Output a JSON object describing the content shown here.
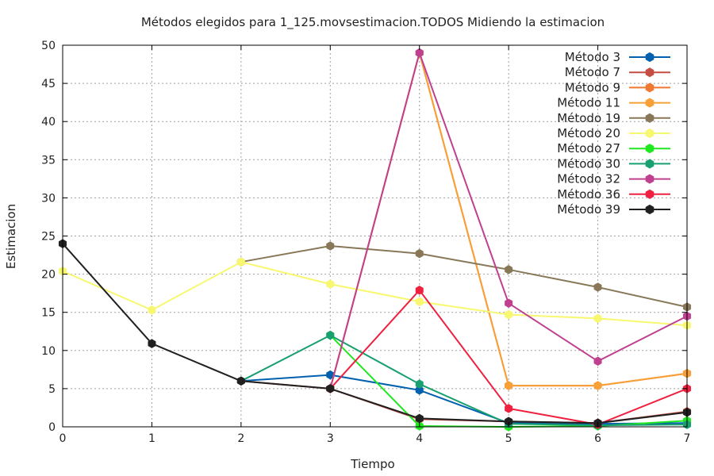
{
  "chart_data": {
    "type": "line",
    "title": "Métodos elegidos para 1_125.movsestimacion.TODOS Midiendo la estimacion",
    "xlabel": "Tiempo",
    "ylabel": "Estimacion",
    "xlim": [
      0,
      7
    ],
    "ylim": [
      0,
      50
    ],
    "xticks": [
      0,
      1,
      2,
      3,
      4,
      5,
      6,
      7
    ],
    "yticks": [
      0,
      5,
      10,
      15,
      20,
      25,
      30,
      35,
      40,
      45,
      50
    ],
    "grid": true,
    "legend_position": "top-right",
    "series": [
      {
        "name": "Método 3",
        "color": "#0060ad",
        "x": [
          2,
          3,
          4,
          5,
          6,
          7
        ],
        "values": [
          6.0,
          6.8,
          4.8,
          0.5,
          0.4,
          0.5
        ]
      },
      {
        "name": "Método 7",
        "color": "#c44e44",
        "x": [
          2,
          3,
          4,
          5,
          6,
          7
        ],
        "values": [
          6.0,
          5.0,
          1.0,
          0.7,
          0.5,
          2.0
        ]
      },
      {
        "name": "Método 9",
        "color": "#f07832",
        "x": [
          3,
          4,
          5,
          6,
          7
        ],
        "values": [
          5.0,
          49.0,
          5.4,
          5.4,
          7.0
        ]
      },
      {
        "name": "Método 11",
        "color": "#f8a038",
        "x": [
          3,
          4,
          5,
          6,
          7
        ],
        "values": [
          5.0,
          49.0,
          5.4,
          5.4,
          7.0
        ]
      },
      {
        "name": "Método 19",
        "color": "#887858",
        "x": [
          2,
          3,
          4,
          5,
          6,
          7
        ],
        "values": [
          21.6,
          23.7,
          22.7,
          20.6,
          18.3,
          15.7
        ]
      },
      {
        "name": "Método 20",
        "color": "#f8f870",
        "x": [
          0,
          1,
          2,
          3,
          4,
          5,
          6,
          7
        ],
        "values": [
          20.4,
          15.3,
          21.6,
          18.7,
          16.4,
          14.7,
          14.2,
          13.3
        ]
      },
      {
        "name": "Método 27",
        "color": "#20e820",
        "x": [
          3,
          4,
          5,
          6,
          7
        ],
        "values": [
          12.0,
          0.1,
          0.0,
          0.1,
          0.8
        ]
      },
      {
        "name": "Método 30",
        "color": "#18a070",
        "x": [
          2,
          3,
          4,
          5,
          6,
          7
        ],
        "values": [
          6.0,
          12.0,
          5.6,
          0.4,
          0.2,
          0.3
        ]
      },
      {
        "name": "Método 32",
        "color": "#c04090",
        "x": [
          3,
          4,
          5,
          6,
          7
        ],
        "values": [
          5.0,
          49.0,
          16.2,
          8.6,
          14.5
        ]
      },
      {
        "name": "Método 36",
        "color": "#f02040",
        "x": [
          3,
          4,
          5,
          6,
          7
        ],
        "values": [
          5.0,
          17.9,
          2.4,
          0.3,
          5.0
        ]
      },
      {
        "name": "Método 39",
        "color": "#202020",
        "x": [
          0,
          1,
          2,
          3,
          4,
          5,
          6,
          7
        ],
        "values": [
          24.0,
          10.9,
          6.0,
          5.0,
          1.1,
          0.7,
          0.5,
          1.9
        ]
      }
    ]
  }
}
